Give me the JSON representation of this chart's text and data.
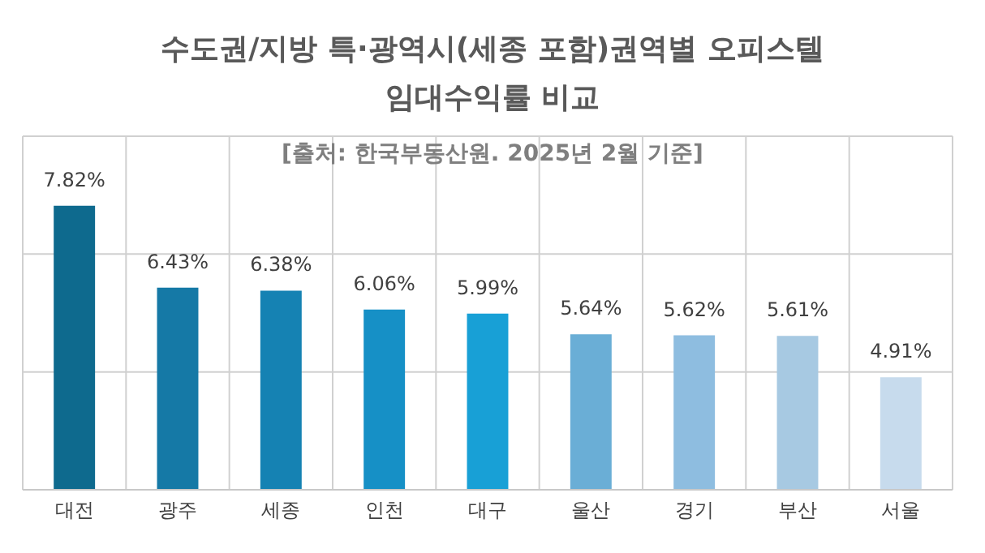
{
  "chart_data": {
    "type": "bar",
    "title": "수도권/지방 특·광역시(세종 포함)권역별 오피스텔",
    "subtitle": "임대수익률 비교",
    "annotations": [
      "[출처: 한국부동산원. 2025년 2월 기준]"
    ],
    "categories": [
      "대전",
      "광주",
      "세종",
      "인천",
      "대구",
      "울산",
      "경기",
      "부산",
      "서울"
    ],
    "values": [
      7.82,
      6.43,
      6.38,
      6.06,
      5.99,
      5.64,
      5.62,
      5.61,
      4.91
    ],
    "value_labels": [
      "7.82%",
      "6.43%",
      "6.38%",
      "6.06%",
      "5.99%",
      "5.64%",
      "5.62%",
      "5.61%",
      "4.91%"
    ],
    "colors": [
      "#0e6a8e",
      "#1579a6",
      "#1582b3",
      "#1690c6",
      "#18a0d6",
      "#6aaed6",
      "#8ebde0",
      "#a7c9e2",
      "#c7dbed"
    ],
    "ylim": [
      3,
      9
    ],
    "yticks": [
      {
        "value": 3,
        "label": null
      },
      {
        "value": 5,
        "label": null
      },
      {
        "value": 7,
        "label": null
      },
      {
        "value": 9,
        "label": null
      }
    ],
    "tick_labels": "x",
    "grid": true
  }
}
